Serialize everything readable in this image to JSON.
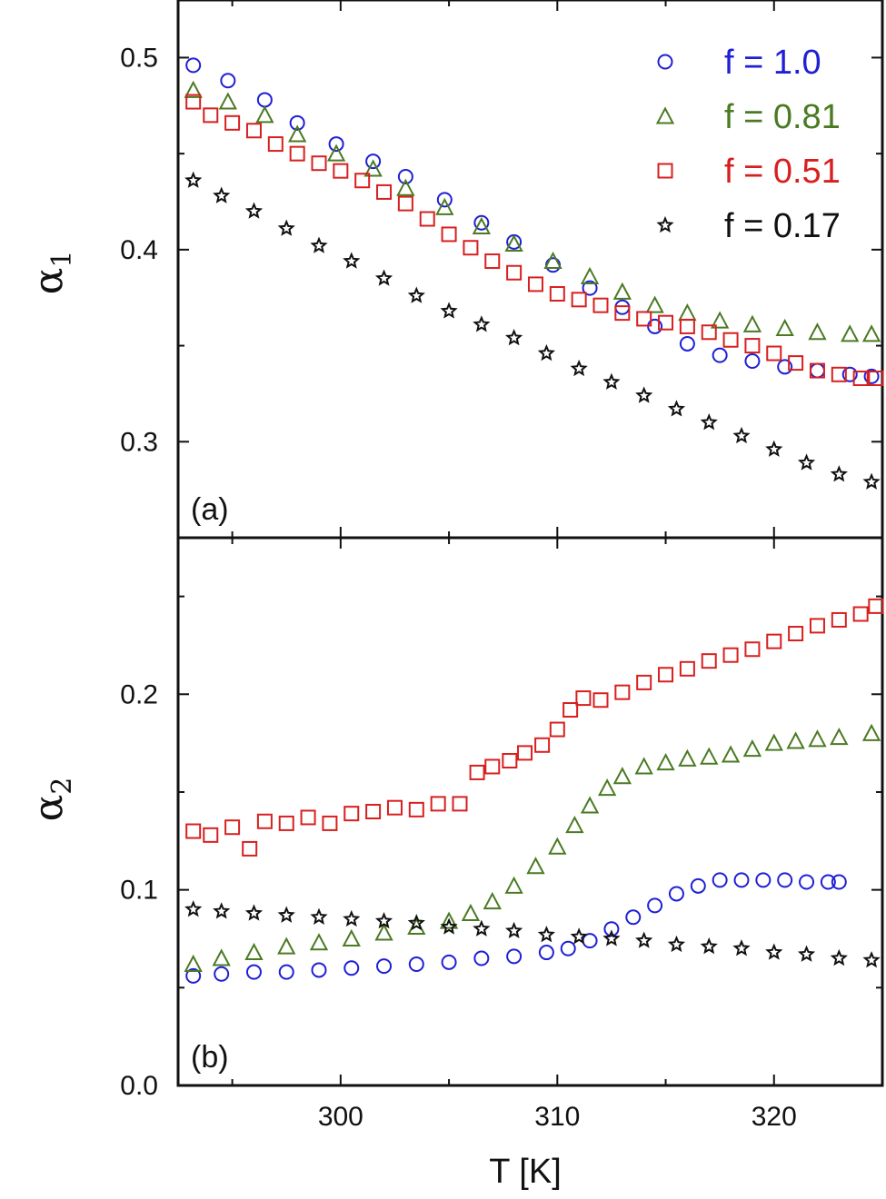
{
  "chart_data": [
    {
      "type": "scatter",
      "panel_label": "(a)",
      "ylabel": "α",
      "ylabel_sub": "1",
      "xlabel": "T [K]",
      "xlim": [
        292.5,
        325
      ],
      "ylim": [
        0.25,
        0.53
      ],
      "yticks": [
        0.3,
        0.4,
        0.5
      ],
      "ytick_labels": [
        "0.3",
        "0.4",
        "0.5"
      ],
      "xticks": [
        300,
        310,
        320
      ],
      "legend_position": "top-right",
      "series": [
        {
          "name": "f = 1.0",
          "marker": "circle",
          "color": "#1f1fd6",
          "x": [
            293.2,
            294.8,
            296.5,
            298.0,
            299.8,
            301.5,
            303.0,
            304.8,
            306.5,
            308.0,
            309.8,
            311.5,
            313.0,
            314.5,
            316.0,
            317.5,
            319.0,
            320.5,
            322.0,
            323.5,
            324.5
          ],
          "y": [
            0.496,
            0.488,
            0.478,
            0.466,
            0.455,
            0.446,
            0.438,
            0.426,
            0.414,
            0.404,
            0.392,
            0.38,
            0.37,
            0.36,
            0.351,
            0.345,
            0.342,
            0.339,
            0.337,
            0.335,
            0.334
          ]
        },
        {
          "name": "f = 0.81",
          "marker": "triangle",
          "color": "#4a7a22",
          "x": [
            293.2,
            294.8,
            296.5,
            298.0,
            299.8,
            301.5,
            303.0,
            304.8,
            306.5,
            308.0,
            309.8,
            311.5,
            313.0,
            314.5,
            316.0,
            317.5,
            319.0,
            320.5,
            322.0,
            323.5,
            324.5
          ],
          "y": [
            0.483,
            0.477,
            0.47,
            0.46,
            0.45,
            0.442,
            0.432,
            0.422,
            0.412,
            0.403,
            0.394,
            0.386,
            0.378,
            0.371,
            0.367,
            0.363,
            0.361,
            0.359,
            0.357,
            0.356,
            0.356
          ]
        },
        {
          "name": "f = 0.51",
          "marker": "square",
          "color": "#d81f1f",
          "x": [
            293.2,
            294.0,
            295.0,
            296.0,
            297.0,
            298.0,
            299.0,
            300.0,
            301.0,
            302.0,
            303.0,
            304.0,
            305.0,
            306.0,
            307.0,
            308.0,
            309.0,
            310.0,
            311.0,
            312.0,
            313.0,
            314.0,
            315.0,
            316.0,
            317.0,
            318.0,
            319.0,
            320.0,
            321.0,
            322.0,
            323.0,
            324.0,
            324.7
          ],
          "y": [
            0.477,
            0.47,
            0.466,
            0.462,
            0.455,
            0.45,
            0.445,
            0.441,
            0.436,
            0.43,
            0.424,
            0.416,
            0.408,
            0.401,
            0.394,
            0.388,
            0.382,
            0.377,
            0.374,
            0.371,
            0.367,
            0.364,
            0.362,
            0.36,
            0.357,
            0.353,
            0.35,
            0.346,
            0.341,
            0.337,
            0.335,
            0.333,
            0.333
          ]
        },
        {
          "name": "f = 0.17",
          "marker": "star",
          "color": "#111111",
          "x": [
            293.2,
            294.5,
            296.0,
            297.5,
            299.0,
            300.5,
            302.0,
            303.5,
            305.0,
            306.5,
            308.0,
            309.5,
            311.0,
            312.5,
            314.0,
            315.5,
            317.0,
            318.5,
            320.0,
            321.5,
            323.0,
            324.5
          ],
          "y": [
            0.436,
            0.428,
            0.42,
            0.411,
            0.402,
            0.394,
            0.385,
            0.376,
            0.368,
            0.361,
            0.354,
            0.346,
            0.338,
            0.331,
            0.324,
            0.317,
            0.31,
            0.303,
            0.296,
            0.289,
            0.283,
            0.279
          ]
        }
      ]
    },
    {
      "type": "scatter",
      "panel_label": "(b)",
      "ylabel": "α",
      "ylabel_sub": "2",
      "xlabel": "T [K]",
      "xlim": [
        292.5,
        325
      ],
      "ylim": [
        0.0,
        0.28
      ],
      "yticks": [
        0.0,
        0.1,
        0.2
      ],
      "ytick_labels": [
        "0.0",
        "0.1",
        "0.2"
      ],
      "xticks": [
        300,
        310,
        320
      ],
      "xtick_labels": [
        "300",
        "310",
        "320"
      ],
      "series": [
        {
          "name": "f = 1.0",
          "marker": "circle",
          "color": "#1f1fd6",
          "x": [
            293.2,
            294.5,
            296.0,
            297.5,
            299.0,
            300.5,
            302.0,
            303.5,
            305.0,
            306.5,
            308.0,
            309.5,
            310.5,
            311.5,
            312.5,
            313.5,
            314.5,
            315.5,
            316.5,
            317.5,
            318.5,
            319.5,
            320.5,
            321.5,
            322.5,
            323.0
          ],
          "y": [
            0.056,
            0.057,
            0.058,
            0.058,
            0.059,
            0.06,
            0.061,
            0.062,
            0.063,
            0.065,
            0.066,
            0.068,
            0.07,
            0.074,
            0.08,
            0.086,
            0.092,
            0.098,
            0.102,
            0.105,
            0.105,
            0.105,
            0.105,
            0.104,
            0.104,
            0.104
          ]
        },
        {
          "name": "f = 0.81",
          "marker": "triangle",
          "color": "#4a7a22",
          "x": [
            293.2,
            294.5,
            296.0,
            297.5,
            299.0,
            300.5,
            302.0,
            303.5,
            305.0,
            306.0,
            307.0,
            308.0,
            309.0,
            310.0,
            310.8,
            311.5,
            312.3,
            313.0,
            314.0,
            315.0,
            316.0,
            317.0,
            318.0,
            319.0,
            320.0,
            321.0,
            322.0,
            323.0,
            324.5
          ],
          "y": [
            0.062,
            0.065,
            0.068,
            0.071,
            0.073,
            0.075,
            0.078,
            0.081,
            0.084,
            0.088,
            0.094,
            0.102,
            0.112,
            0.122,
            0.133,
            0.143,
            0.152,
            0.158,
            0.163,
            0.165,
            0.167,
            0.168,
            0.169,
            0.172,
            0.175,
            0.176,
            0.177,
            0.178,
            0.18
          ]
        },
        {
          "name": "f = 0.51",
          "marker": "square",
          "color": "#d81f1f",
          "x": [
            293.2,
            294.0,
            295.0,
            295.8,
            296.5,
            297.5,
            298.5,
            299.5,
            300.5,
            301.5,
            302.5,
            303.5,
            304.5,
            305.5,
            306.3,
            307.0,
            307.8,
            308.5,
            309.3,
            310.0,
            310.6,
            311.2,
            312.0,
            313.0,
            314.0,
            315.0,
            316.0,
            317.0,
            318.0,
            319.0,
            320.0,
            321.0,
            322.0,
            323.0,
            324.0,
            324.7
          ],
          "y": [
            0.13,
            0.128,
            0.132,
            0.121,
            0.135,
            0.134,
            0.137,
            0.134,
            0.139,
            0.14,
            0.142,
            0.141,
            0.144,
            0.144,
            0.16,
            0.163,
            0.166,
            0.17,
            0.174,
            0.182,
            0.192,
            0.198,
            0.197,
            0.201,
            0.206,
            0.21,
            0.213,
            0.217,
            0.22,
            0.223,
            0.227,
            0.231,
            0.235,
            0.238,
            0.241,
            0.245
          ]
        },
        {
          "name": "f = 0.17",
          "marker": "star",
          "color": "#111111",
          "x": [
            293.2,
            294.5,
            296.0,
            297.5,
            299.0,
            300.5,
            302.0,
            303.5,
            305.0,
            306.5,
            308.0,
            309.5,
            311.0,
            312.5,
            314.0,
            315.5,
            317.0,
            318.5,
            320.0,
            321.5,
            323.0,
            324.5
          ],
          "y": [
            0.09,
            0.089,
            0.088,
            0.087,
            0.086,
            0.085,
            0.084,
            0.083,
            0.081,
            0.08,
            0.079,
            0.077,
            0.076,
            0.075,
            0.074,
            0.072,
            0.071,
            0.07,
            0.068,
            0.067,
            0.065,
            0.064
          ]
        }
      ]
    }
  ],
  "legend": [
    {
      "label": "f = 1.0",
      "marker": "circle",
      "color": "#1f1fd6"
    },
    {
      "label": "f = 0.81",
      "marker": "triangle",
      "color": "#4a7a22"
    },
    {
      "label": "f = 0.51",
      "marker": "square",
      "color": "#d81f1f"
    },
    {
      "label": "f = 0.17",
      "marker": "star",
      "color": "#111111"
    }
  ]
}
